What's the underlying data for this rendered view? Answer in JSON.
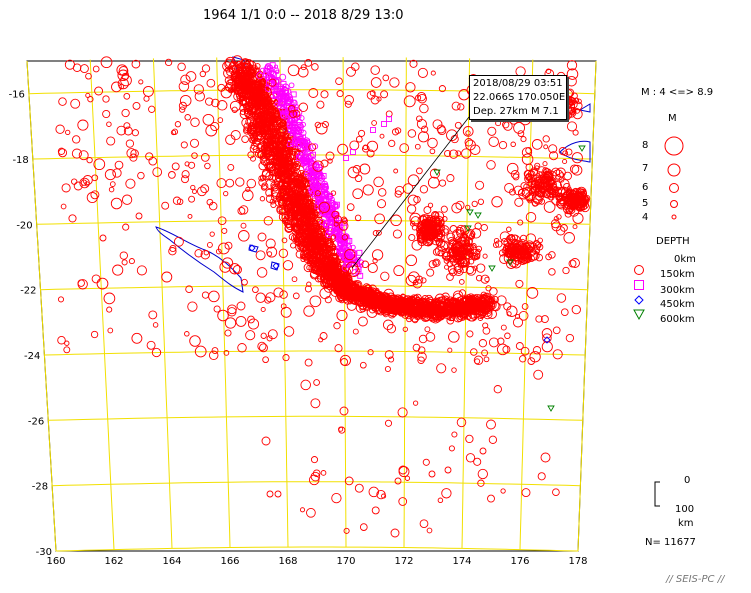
{
  "title": "1964 1/1  0:0 -- 2018 8/29 13:0",
  "x_ticks": [
    "160",
    "162",
    "164",
    "166",
    "168",
    "170",
    "172",
    "174",
    "176",
    "178"
  ],
  "y_ticks": [
    "-16",
    "-18",
    "-20",
    "-22",
    "-24",
    "-26",
    "-28",
    "-30"
  ],
  "tooltip": {
    "datetime": "2018/08/29 03:51",
    "location": "22.066S   170.050E",
    "depth_mag": "Dep. 27km    M 7.1"
  },
  "legend": {
    "magnitude_range": "M : 4 <=> 8.9",
    "magnitude_heading": "M",
    "magnitudes": [
      "8",
      "7",
      "6",
      "5",
      "4"
    ],
    "depth_heading": "DEPTH",
    "depths": [
      "0km",
      "150km",
      "300km",
      "450km",
      "600km"
    ],
    "scale_top": "0",
    "scale_value": "100",
    "scale_unit": "km",
    "count": "N= 11677"
  },
  "footer": "// SEIS-PC //",
  "colors": {
    "grid": "#f2e000",
    "coast": "#0000cc",
    "shallow": "#ff0000",
    "intermediate": "#ff00ff",
    "deep": "#0000ff",
    "very_deep": "#008000"
  }
}
